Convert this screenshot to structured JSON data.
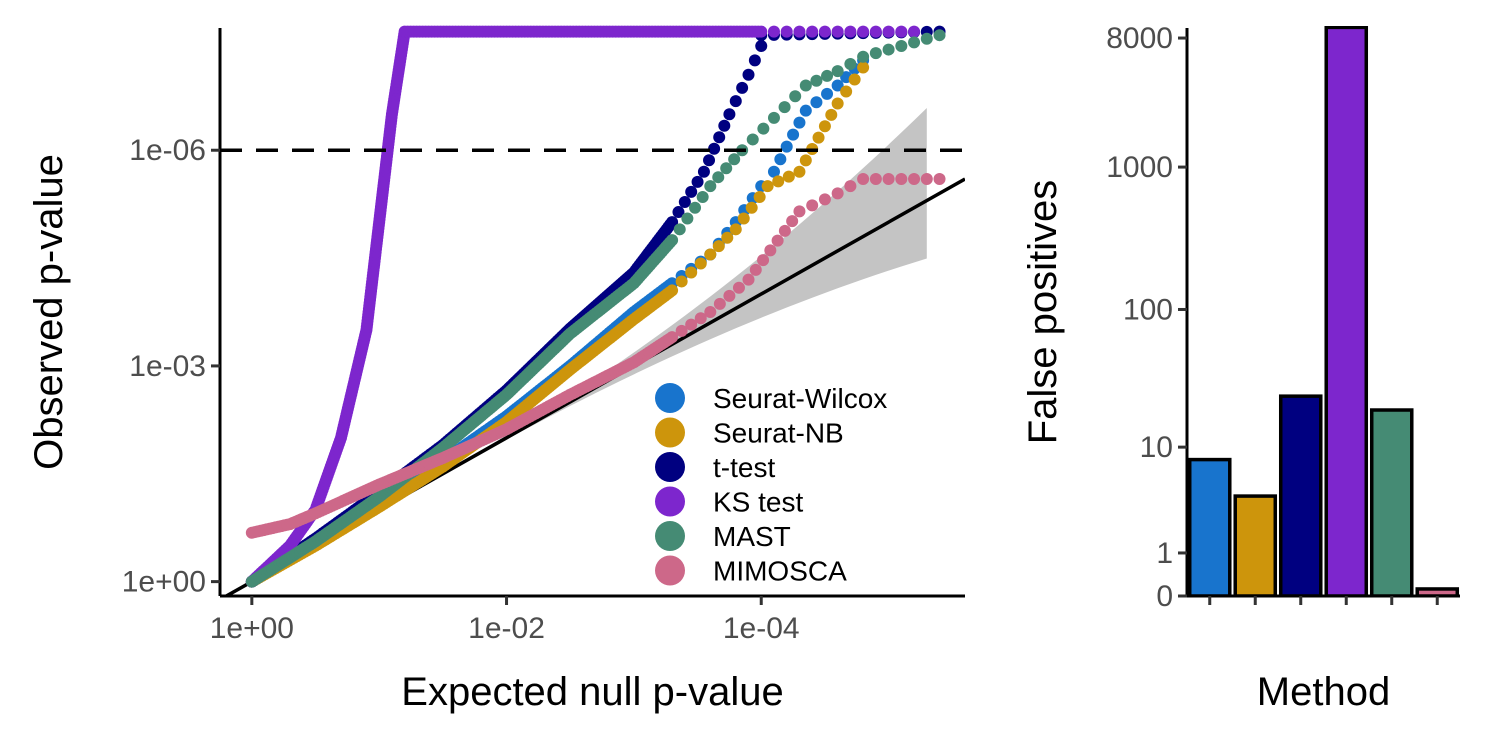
{
  "colors": {
    "Seurat-Wilcox": "#1874CD",
    "Seurat-NB": "#CD950C",
    "t-test": "#000080",
    "KS test": "#7D26CD",
    "MAST": "#458B74",
    "MIMOSCA": "#CD6889",
    "ci_band": "#c4c4c4",
    "reference_line": "#000000"
  },
  "chart_data": [
    {
      "type": "scatter",
      "xlabel": "Expected null p-value",
      "ylabel": "Observed p-value",
      "x_scale": "-log10",
      "y_scale": "-log10",
      "xlim_neglog10": [
        -0.25,
        5.6
      ],
      "ylim_neglog10": [
        -0.2,
        7.7
      ],
      "x_ticks": [
        "1e+00",
        "1e-02",
        "1e-04"
      ],
      "y_ticks": [
        "1e+00",
        "1e-03",
        "1e-06"
      ],
      "hline_p": 1e-06,
      "legend_position": "bottom-right",
      "series": [
        {
          "name": "Seurat-Wilcox",
          "points_neglog10": [
            [
              0,
              0
            ],
            [
              0.5,
              0.52
            ],
            [
              1,
              1.08
            ],
            [
              1.5,
              1.68
            ],
            [
              2,
              2.3
            ],
            [
              2.5,
              3.0
            ],
            [
              3,
              3.75
            ],
            [
              3.3,
              4.15
            ],
            [
              3.6,
              4.55
            ],
            [
              3.8,
              5.0
            ],
            [
              4.0,
              5.5
            ],
            [
              4.1,
              5.7
            ],
            [
              4.2,
              6.05
            ],
            [
              4.35,
              6.55
            ],
            [
              4.6,
              6.9
            ],
            [
              4.8,
              7.25
            ]
          ]
        },
        {
          "name": "Seurat-NB",
          "points_neglog10": [
            [
              0,
              0
            ],
            [
              0.5,
              0.5
            ],
            [
              1,
              1.04
            ],
            [
              1.5,
              1.6
            ],
            [
              2,
              2.22
            ],
            [
              2.5,
              2.95
            ],
            [
              3,
              3.65
            ],
            [
              3.3,
              4.05
            ],
            [
              3.6,
              4.55
            ],
            [
              3.8,
              4.9
            ],
            [
              4.05,
              5.5
            ],
            [
              4.3,
              5.7
            ],
            [
              4.6,
              6.65
            ],
            [
              4.8,
              7.15
            ]
          ]
        },
        {
          "name": "t-test",
          "points_neglog10": [
            [
              0,
              0
            ],
            [
              0.5,
              0.6
            ],
            [
              1,
              1.24
            ],
            [
              1.5,
              1.9
            ],
            [
              2,
              2.66
            ],
            [
              2.5,
              3.52
            ],
            [
              3,
              4.3
            ],
            [
              3.3,
              5.0
            ],
            [
              3.55,
              5.7
            ],
            [
              3.75,
              6.5
            ],
            [
              3.9,
              7.05
            ],
            [
              4.0,
              7.45
            ],
            [
              4.0,
              7.6
            ],
            [
              5.4,
              7.65
            ]
          ]
        },
        {
          "name": "KS test",
          "points_neglog10": [
            [
              0,
              0
            ],
            [
              0.3,
              0.5
            ],
            [
              0.5,
              1.0
            ],
            [
              0.7,
              2.0
            ],
            [
              0.9,
              3.5
            ],
            [
              1.0,
              5.0
            ],
            [
              1.1,
              6.5
            ],
            [
              1.2,
              7.65
            ],
            [
              2.0,
              7.65
            ],
            [
              3.0,
              7.65
            ],
            [
              4.0,
              7.65
            ],
            [
              4.7,
              7.65
            ],
            [
              5.2,
              7.65
            ]
          ]
        },
        {
          "name": "MAST",
          "points_neglog10": [
            [
              0,
              0
            ],
            [
              0.5,
              0.56
            ],
            [
              1,
              1.18
            ],
            [
              1.5,
              1.86
            ],
            [
              2,
              2.6
            ],
            [
              2.5,
              3.45
            ],
            [
              3,
              4.15
            ],
            [
              3.3,
              4.75
            ],
            [
              3.6,
              5.5
            ],
            [
              3.85,
              6.0
            ],
            [
              4.1,
              6.45
            ],
            [
              4.35,
              6.9
            ],
            [
              4.6,
              7.1
            ],
            [
              4.8,
              7.3
            ],
            [
              5.4,
              7.6
            ]
          ]
        },
        {
          "name": "MIMOSCA",
          "points_neglog10": [
            [
              0,
              0.68
            ],
            [
              0.3,
              0.8
            ],
            [
              0.5,
              0.95
            ],
            [
              1,
              1.35
            ],
            [
              1.5,
              1.72
            ],
            [
              2,
              2.12
            ],
            [
              2.5,
              2.6
            ],
            [
              3,
              3.05
            ],
            [
              3.3,
              3.4
            ],
            [
              3.6,
              3.75
            ],
            [
              3.9,
              4.2
            ],
            [
              4.3,
              5.15
            ],
            [
              4.6,
              5.4
            ],
            [
              4.8,
              5.6
            ],
            [
              5.4,
              5.6
            ]
          ]
        }
      ]
    },
    {
      "type": "bar",
      "xlabel": "Method",
      "ylabel": "False positives",
      "y_scale": "log1p",
      "y_ticks": [
        "0",
        "1",
        "10",
        "100",
        "1000",
        "8000"
      ],
      "categories": [
        "Seurat-Wilcox",
        "Seurat-NB",
        "t-test",
        "KS test",
        "MAST",
        "MIMOSCA"
      ],
      "values": [
        8,
        4,
        24,
        9500,
        19,
        0.12
      ]
    }
  ]
}
